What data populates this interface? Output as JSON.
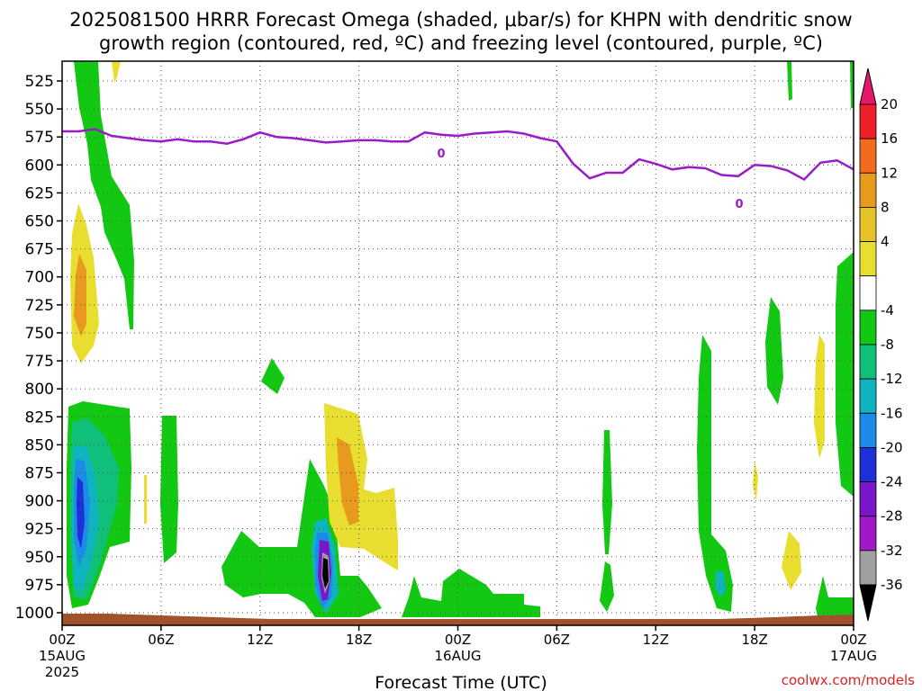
{
  "chart_data": {
    "type": "heatmap",
    "title_line1": "2025081500 HRRR Forecast Omega (shaded, μbar/s) for KHPN with dendritic snow",
    "title_line2": "growth region (contoured, red, ºC) and freezing level (contoured, purple, ºC)",
    "xlabel": "Forecast Time (UTC)",
    "credit": "coolwx.com/models",
    "x_range_hours": [
      0,
      48
    ],
    "x_ticks": [
      {
        "hour": 0,
        "label": "00Z",
        "sub1": "15AUG",
        "sub2": "2025"
      },
      {
        "hour": 6,
        "label": "06Z",
        "sub1": "",
        "sub2": ""
      },
      {
        "hour": 12,
        "label": "12Z",
        "sub1": "",
        "sub2": ""
      },
      {
        "hour": 18,
        "label": "18Z",
        "sub1": "",
        "sub2": ""
      },
      {
        "hour": 24,
        "label": "00Z",
        "sub1": "16AUG",
        "sub2": ""
      },
      {
        "hour": 30,
        "label": "06Z",
        "sub1": "",
        "sub2": ""
      },
      {
        "hour": 36,
        "label": "12Z",
        "sub1": "",
        "sub2": ""
      },
      {
        "hour": 42,
        "label": "18Z",
        "sub1": "",
        "sub2": ""
      },
      {
        "hour": 48,
        "label": "00Z",
        "sub1": "17AUG",
        "sub2": ""
      }
    ],
    "y_range_mb": [
      508,
      1015
    ],
    "y_ticks": [
      "525",
      "550",
      "575",
      "600",
      "625",
      "650",
      "675",
      "700",
      "725",
      "750",
      "775",
      "800",
      "825",
      "850",
      "875",
      "900",
      "925",
      "950",
      "975",
      "1000"
    ],
    "grid": true,
    "colorbar": {
      "labels": [
        "20",
        "16",
        "12",
        "8",
        "4",
        "-4",
        "-8",
        "-12",
        "-16",
        "-20",
        "-24",
        "-28",
        "-32",
        "-36"
      ],
      "colors": [
        "#e8166c",
        "#f0202a",
        "#f26a1e",
        "#e89a1e",
        "#e8c22a",
        "#e8de30",
        "#ffffff",
        "#12c812",
        "#10c07a",
        "#10b4c0",
        "#1c8ce8",
        "#2030d8",
        "#7a16c8",
        "#a018c8",
        "#a0a0a0",
        "#000000"
      ]
    },
    "freezing_level": {
      "label": "0",
      "hours": [
        0,
        1,
        2,
        3,
        4,
        5,
        6,
        7,
        8,
        9,
        10,
        11,
        12,
        13,
        14,
        15,
        16,
        17,
        18,
        19,
        20,
        21,
        22,
        23,
        24,
        25,
        26,
        27,
        28,
        29,
        30,
        31,
        32,
        33,
        34,
        35,
        36,
        37,
        38,
        39,
        40,
        41,
        42,
        43,
        44,
        45,
        46,
        47,
        48
      ],
      "mb": [
        570,
        570,
        568,
        574,
        576,
        578,
        579,
        577,
        579,
        579,
        581,
        577,
        571,
        575,
        576,
        578,
        580,
        579,
        578,
        578,
        579,
        579,
        571,
        573,
        574,
        572,
        571,
        570,
        572,
        576,
        579,
        599,
        612,
        607,
        607,
        595,
        599,
        604,
        602,
        603,
        609,
        610,
        600,
        601,
        605,
        613,
        598,
        596,
        604
      ]
    },
    "terrain_color": "#a0522d",
    "shading_levels": [
      {
        "level": -8,
        "color": "#12c812"
      },
      {
        "level": -12,
        "color": "#10c07a"
      },
      {
        "level": -16,
        "color": "#10b4c0"
      },
      {
        "level": -20,
        "color": "#1c8ce8"
      },
      {
        "level": -24,
        "color": "#2030d8"
      },
      {
        "level": -28,
        "color": "#7a16c8"
      },
      {
        "level": -32,
        "color": "#a018c8"
      },
      {
        "level": -36,
        "color": "#000000"
      },
      {
        "level": 4,
        "color": "#e8de30"
      },
      {
        "level": 8,
        "color": "#e89a1e"
      }
    ]
  }
}
